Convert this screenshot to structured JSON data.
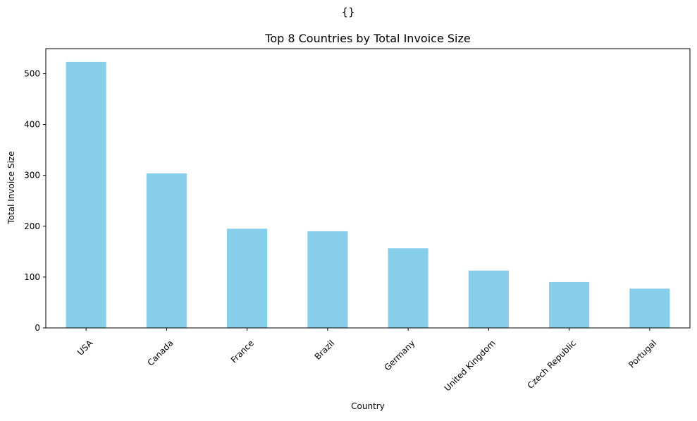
{
  "figure": {
    "suptitle": "{}"
  },
  "chart_data": {
    "type": "bar",
    "title": "Top 8 Countries by Total Invoice Size",
    "xlabel": "Country",
    "ylabel": "Total Invoice Size",
    "categories": [
      "USA",
      "Canada",
      "France",
      "Brazil",
      "Germany",
      "United Kingdom",
      "Czech Republic",
      "Portugal"
    ],
    "values": [
      523.06,
      303.96,
      195.1,
      190.1,
      156.48,
      112.86,
      90.24,
      77.24
    ],
    "ylim": [
      0,
      549.2
    ],
    "yticks": [
      0,
      100,
      200,
      300,
      400,
      500
    ],
    "bar_color": "#87CEEB",
    "grid": false,
    "legend": false
  }
}
